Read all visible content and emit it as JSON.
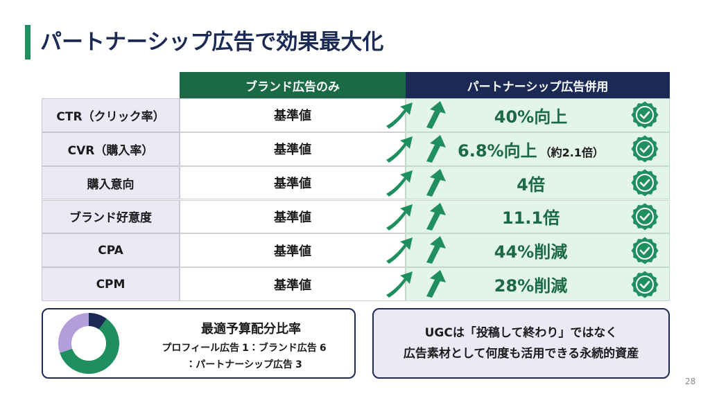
{
  "header": {
    "title": "パートナーシップ広告で効果最大化"
  },
  "table": {
    "columns": [
      "ブランド広告のみ",
      "パートナーシップ広告併用"
    ],
    "rows": [
      {
        "label": "CTR（クリック率）",
        "base": "基準値",
        "result": "40%向上"
      },
      {
        "label": "CVR（購入率）",
        "base": "基準値",
        "result": "6.8%向上",
        "note": "（約2.1倍）"
      },
      {
        "label": "購入意向",
        "base": "基準値",
        "result": "4倍"
      },
      {
        "label": "ブランド好意度",
        "base": "基準値",
        "result": "11.1倍"
      },
      {
        "label": "CPA",
        "base": "基準値",
        "result": "44%削減"
      },
      {
        "label": "CPM",
        "base": "基準値",
        "result": "28%削減"
      }
    ]
  },
  "budget": {
    "title": "最適予算配分比率",
    "separator": "：",
    "segments": [
      {
        "name": "プロフィール広告",
        "value": 1,
        "color": "#1b2a55"
      },
      {
        "name": "ブランド広告",
        "value": 6,
        "color": "#1f8f5f"
      },
      {
        "name": "パートナーシップ広告",
        "value": 3,
        "color": "#b39ddb"
      }
    ]
  },
  "callout": {
    "lines": [
      "UGCは「投稿して終わり」ではなく",
      "広告素材として何度も活用できる永続的資産"
    ]
  },
  "page_number": "28"
}
